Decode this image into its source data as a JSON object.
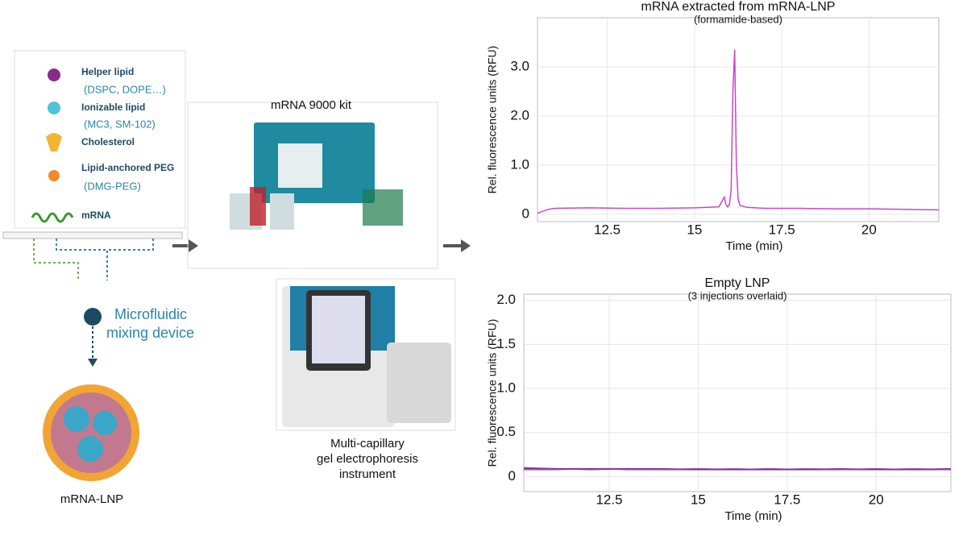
{
  "chart_data": [
    {
      "type": "line",
      "title": "mRNA extracted from mRNA-LNP",
      "subtitle": "(formamide-based)",
      "x_label": "Time (min)",
      "y_label": "Rel. fluorescence units (RFU)",
      "x": [
        10.5,
        10.8,
        11,
        12,
        13,
        14,
        15,
        15.7,
        15.85,
        15.9,
        15.95,
        16.0,
        16.05,
        16.1,
        16.15,
        16.2,
        16.25,
        16.3,
        16.5,
        17,
        18,
        19,
        20,
        21,
        22
      ],
      "values": [
        0.02,
        0.1,
        0.12,
        0.13,
        0.12,
        0.12,
        0.13,
        0.15,
        0.35,
        0.2,
        0.15,
        0.2,
        0.5,
        2.5,
        3.35,
        1.0,
        0.3,
        0.18,
        0.14,
        0.12,
        0.12,
        0.11,
        0.11,
        0.1,
        0.09
      ],
      "color": "#cc44cc",
      "xlim": [
        10.5,
        22
      ],
      "ylim": [
        -0.15,
        4.0
      ],
      "xticks": [
        12.5,
        15,
        17.5,
        20
      ],
      "yticks": [
        0,
        {
          "value": 1,
          "label": "1.0"
        },
        {
          "value": 2,
          "label": "2.0"
        },
        {
          "value": 3,
          "label": "3.0"
        }
      ],
      "grid": true
    },
    {
      "type": "line",
      "title": "Empty LNP",
      "subtitle": "(3 injections overlaid)",
      "x_label": "Time (min)",
      "y_label": "Rel. fluorescence units (RFU)",
      "x": [
        10.1,
        11,
        12,
        13,
        14,
        15,
        16,
        17,
        18,
        19,
        20,
        21,
        22.1
      ],
      "series": [
        {
          "color": "#8e3fa8",
          "values": [
            0.09,
            0.09,
            0.08,
            0.09,
            0.08,
            0.09,
            0.08,
            0.09,
            0.08,
            0.08,
            0.09,
            0.08,
            0.08
          ]
        },
        {
          "color": "#a050b8",
          "values": [
            0.08,
            0.08,
            0.09,
            0.08,
            0.08,
            0.08,
            0.09,
            0.08,
            0.09,
            0.08,
            0.08,
            0.09,
            0.08
          ]
        },
        {
          "color": "#7a3590",
          "values": [
            0.1,
            0.09,
            0.09,
            0.09,
            0.09,
            0.08,
            0.08,
            0.08,
            0.08,
            0.09,
            0.08,
            0.08,
            0.09
          ]
        }
      ],
      "xlim": [
        10.1,
        22.1
      ],
      "ylim": [
        -0.17,
        2.07
      ],
      "xticks": [
        12.5,
        15,
        17.5,
        20
      ],
      "yticks": [
        0,
        0.5,
        {
          "value": 1,
          "label": "1.0"
        },
        1.5,
        {
          "value": 2,
          "label": "2.0"
        }
      ],
      "grid": true
    }
  ],
  "legend": {
    "items": [
      {
        "label": "Helper lipid",
        "detail": "(DSPC, DOPE…)"
      },
      {
        "label": "Ionizable lipid",
        "detail": "(MC3, SM-102)"
      },
      {
        "label": "Cholesterol"
      },
      {
        "label": "Lipid-anchored PEG",
        "detail": "(DMG-PEG)"
      },
      {
        "label": "mRNA"
      }
    ]
  },
  "mixer": {
    "lines": [
      "Microfluidic",
      "mixing device"
    ]
  },
  "particle": {
    "label": "mRNA-LNP"
  },
  "kit": {
    "label": "mRNA 9000 kit"
  },
  "instrument": {
    "lines": [
      "Multi-capillary",
      "gel electrophoresis",
      "instrument"
    ]
  }
}
